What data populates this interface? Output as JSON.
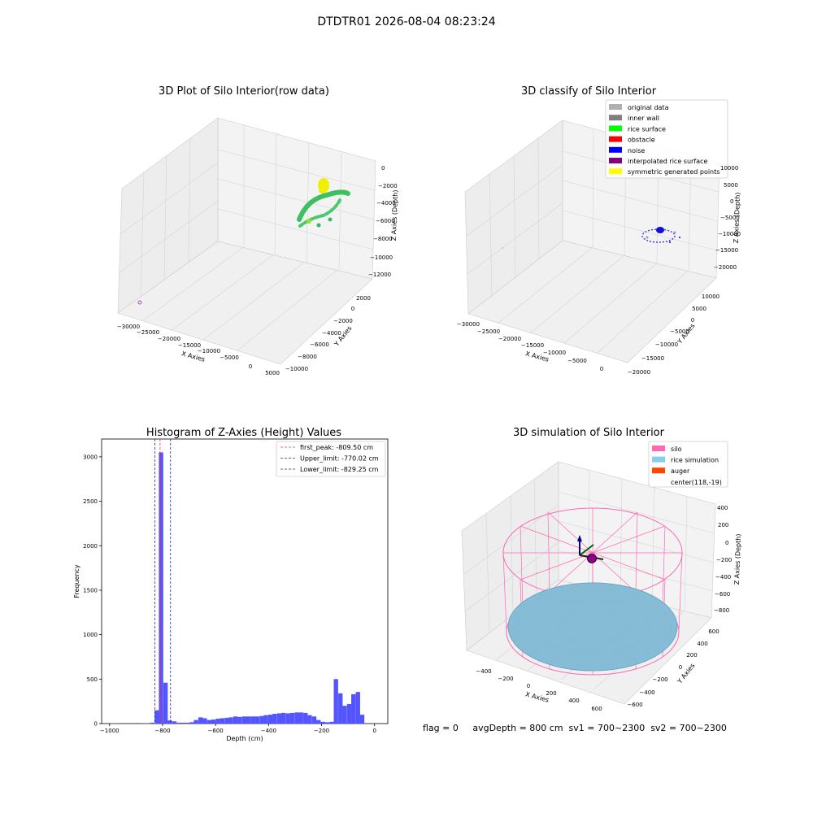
{
  "suptitle": "DTDTR01 2026-08-04 08:23:24",
  "footer": "flag = 0     avgDepth = 800 cm  sv1 = 700~2300  sv2 = 700~2300",
  "chart_data": [
    {
      "type": "scatter",
      "title": "3D Plot of Silo Interior(row data)",
      "xlabel": "X Axies",
      "ylabel": "Y Axies",
      "zlabel": "Z Axies (Depth)",
      "x_ticks": [
        "−30000",
        "−25000",
        "−20000",
        "−15000",
        "−10000",
        "−5000",
        "0",
        "5000"
      ],
      "y_ticks": [
        "−10000",
        "−8000",
        "−6000",
        "−4000",
        "−2000",
        "0",
        "2000"
      ],
      "z_ticks": [
        "0",
        "−2000",
        "−4000",
        "−6000",
        "−8000",
        "−10000",
        "−12000"
      ],
      "notes": "row data point cloud colored by depth (yellow to green)"
    },
    {
      "type": "scatter",
      "title": "3D classify of Silo Interior",
      "xlabel": "X Axies",
      "ylabel": "Y Axies",
      "zlabel": "Z Axies (Depth)",
      "x_ticks": [
        "−30000",
        "−25000",
        "−20000",
        "−15000",
        "−10000",
        "−5000",
        "0"
      ],
      "y_ticks": [
        "−20000",
        "−15000",
        "−10000",
        "−5000",
        "0",
        "5000",
        "10000"
      ],
      "z_ticks": [
        "10000",
        "5000",
        "0",
        "−5000",
        "−10000",
        "−15000",
        "−20000"
      ],
      "legend": [
        {
          "label": "original data",
          "color": "#b0b0b0"
        },
        {
          "label": "inner wall",
          "color": "#808080"
        },
        {
          "label": "rice surface",
          "color": "#00ff00"
        },
        {
          "label": "obstacle",
          "color": "#ff0000"
        },
        {
          "label": "noise",
          "color": "#0000ff"
        },
        {
          "label": "interpolated rice surface",
          "color": "#800080"
        },
        {
          "label": "symmetric generated points",
          "color": "#ffff00"
        }
      ]
    },
    {
      "type": "bar",
      "title": "Histogram of Z-Axies (Height) Values",
      "xlabel": "Depth (cm)",
      "ylabel": "Frequency",
      "xlim": [
        -1030,
        50
      ],
      "ylim": [
        0,
        3200
      ],
      "x_ticks": [
        -1000,
        -800,
        -600,
        -400,
        -200,
        0
      ],
      "y_ticks": [
        0,
        500,
        1000,
        1500,
        2000,
        2500,
        3000
      ],
      "bin_width": 16.5,
      "bar_color": "#5555ff",
      "bins": [
        [
          -996,
          5
        ],
        [
          -980,
          3
        ],
        [
          -880,
          5
        ],
        [
          -863,
          3
        ],
        [
          -847,
          10
        ],
        [
          -830,
          150
        ],
        [
          -814,
          3050
        ],
        [
          -797,
          460
        ],
        [
          -781,
          35
        ],
        [
          -764,
          25
        ],
        [
          -748,
          10
        ],
        [
          -731,
          10
        ],
        [
          -715,
          10
        ],
        [
          -698,
          15
        ],
        [
          -682,
          40
        ],
        [
          -665,
          70
        ],
        [
          -649,
          60
        ],
        [
          -632,
          40
        ],
        [
          -616,
          45
        ],
        [
          -599,
          55
        ],
        [
          -583,
          60
        ],
        [
          -566,
          65
        ],
        [
          -550,
          70
        ],
        [
          -533,
          80
        ],
        [
          -517,
          75
        ],
        [
          -500,
          80
        ],
        [
          -484,
          80
        ],
        [
          -467,
          80
        ],
        [
          -451,
          80
        ],
        [
          -434,
          85
        ],
        [
          -418,
          95
        ],
        [
          -401,
          100
        ],
        [
          -385,
          110
        ],
        [
          -368,
          115
        ],
        [
          -352,
          120
        ],
        [
          -335,
          115
        ],
        [
          -319,
          120
        ],
        [
          -302,
          125
        ],
        [
          -286,
          125
        ],
        [
          -269,
          120
        ],
        [
          -253,
          95
        ],
        [
          -236,
          80
        ],
        [
          -220,
          40
        ],
        [
          -203,
          20
        ],
        [
          -187,
          15
        ],
        [
          -170,
          20
        ],
        [
          -154,
          500
        ],
        [
          -137,
          340
        ],
        [
          -121,
          200
        ],
        [
          -104,
          220
        ],
        [
          -88,
          330
        ],
        [
          -71,
          355
        ],
        [
          -55,
          100
        ]
      ],
      "vlines": [
        {
          "label": "first_peak: -809.50 cm",
          "x": -809.5,
          "color": "#ff3333"
        },
        {
          "label": "Upper_limit: -770.02 cm",
          "x": -770.02,
          "color": "#2222cc"
        },
        {
          "label": "Lower_limit: -829.25 cm",
          "x": -829.25,
          "color": "#2222cc"
        }
      ]
    },
    {
      "type": "scatter",
      "title": "3D simulation of Silo Interior",
      "xlabel": "X Axies",
      "ylabel": "Y Axies",
      "zlabel": "Z Axies (Depth)",
      "x_ticks": [
        "−400",
        "−200",
        "0",
        "200",
        "400",
        "600"
      ],
      "y_ticks": [
        "−600",
        "−400",
        "−200",
        "0",
        "200",
        "400",
        "600"
      ],
      "z_ticks": [
        "400",
        "200",
        "0",
        "−200",
        "−400",
        "−600",
        "−800"
      ],
      "legend": [
        {
          "label": "silo",
          "color": "#ff69b4"
        },
        {
          "label": "rice simulation",
          "color": "#87ceeb"
        },
        {
          "label": "auger",
          "color": "#ff4500"
        },
        {
          "label": "center(118,-19)",
          "color": ""
        }
      ]
    }
  ]
}
